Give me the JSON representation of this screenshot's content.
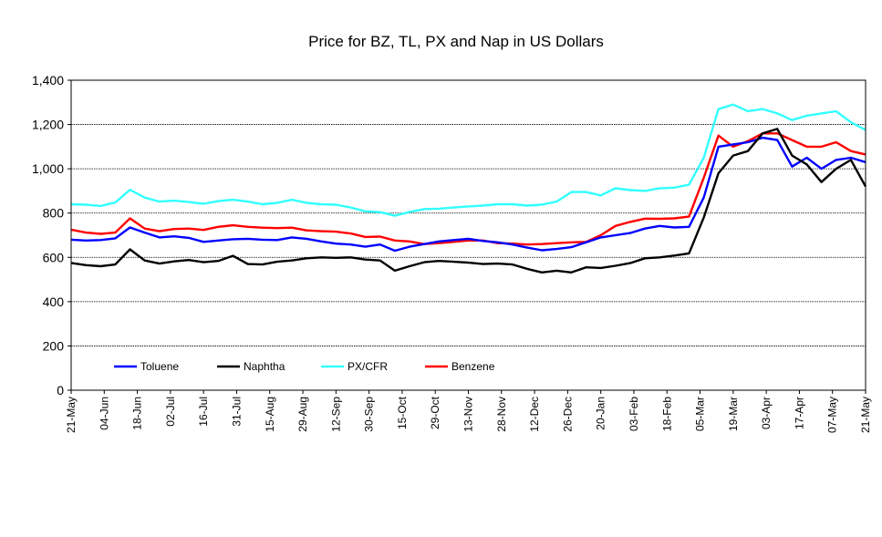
{
  "chart_data": {
    "type": "line",
    "title": "Price for BZ, TL, PX and Nap in US Dollars",
    "xlabel": "",
    "ylabel": "",
    "ylim": [
      0,
      1400
    ],
    "yticks": [
      0,
      200,
      400,
      600,
      800,
      1000,
      1200,
      1400
    ],
    "ytick_labels": [
      "0",
      "200",
      "400",
      "600",
      "800",
      "1,000",
      "1,200",
      "1,400"
    ],
    "grid": "horizontal",
    "legend_position": "bottom-left inside plot",
    "x_tick_labels": [
      "21-May",
      "04-Jun",
      "18-Jun",
      "02-Jul",
      "16-Jul",
      "31-Jul",
      "15-Aug",
      "29-Aug",
      "12-Sep",
      "30-Sep",
      "15-Oct",
      "29-Oct",
      "13-Nov",
      "28-Nov",
      "12-Dec",
      "26-Dec",
      "20-Jan",
      "03-Feb",
      "18-Feb",
      "05-Mar",
      "19-Mar",
      "03-Apr",
      "17-Apr",
      "07-May",
      "21-May"
    ],
    "series": [
      {
        "name": "Toluene",
        "color": "#0000ff",
        "values": [
          680,
          676,
          678,
          686,
          735,
          712,
          690,
          695,
          688,
          670,
          676,
          682,
          684,
          680,
          678,
          690,
          684,
          672,
          662,
          658,
          648,
          658,
          630,
          648,
          660,
          672,
          678,
          684,
          674,
          668,
          658,
          644,
          632,
          638,
          646,
          668,
          690,
          700,
          710,
          730,
          742,
          735,
          738,
          870,
          1100,
          1110,
          1120,
          1140,
          1130,
          1010,
          1050,
          1000,
          1040,
          1050,
          1030
        ]
      },
      {
        "name": "Naphtha",
        "color": "#000000",
        "values": [
          575,
          565,
          560,
          568,
          636,
          586,
          572,
          582,
          588,
          578,
          584,
          607,
          570,
          568,
          580,
          586,
          596,
          600,
          598,
          600,
          590,
          586,
          540,
          560,
          578,
          584,
          580,
          576,
          570,
          572,
          568,
          548,
          532,
          540,
          532,
          555,
          552,
          562,
          574,
          596,
          600,
          608,
          618,
          780,
          980,
          1060,
          1080,
          1160,
          1180,
          1060,
          1020,
          940,
          1000,
          1040,
          920
        ]
      },
      {
        "name": "PX/CFR",
        "color": "#33ffff",
        "values": [
          840,
          838,
          832,
          848,
          905,
          870,
          852,
          856,
          850,
          842,
          854,
          860,
          852,
          840,
          846,
          860,
          846,
          840,
          838,
          825,
          808,
          804,
          788,
          805,
          818,
          820,
          825,
          830,
          834,
          840,
          840,
          834,
          838,
          852,
          895,
          895,
          880,
          912,
          904,
          900,
          912,
          915,
          928,
          1050,
          1270,
          1290,
          1260,
          1270,
          1250,
          1220,
          1240,
          1250,
          1260,
          1210,
          1175
        ]
      },
      {
        "name": "Benzene",
        "color": "#ff0000",
        "values": [
          725,
          712,
          706,
          712,
          776,
          730,
          718,
          728,
          730,
          724,
          738,
          745,
          738,
          734,
          732,
          734,
          722,
          718,
          716,
          708,
          692,
          694,
          676,
          672,
          660,
          664,
          670,
          676,
          676,
          664,
          662,
          658,
          660,
          664,
          668,
          670,
          700,
          742,
          760,
          775,
          774,
          776,
          784,
          960,
          1150,
          1100,
          1125,
          1160,
          1160,
          1130,
          1100,
          1100,
          1120,
          1080,
          1065
        ]
      }
    ]
  }
}
